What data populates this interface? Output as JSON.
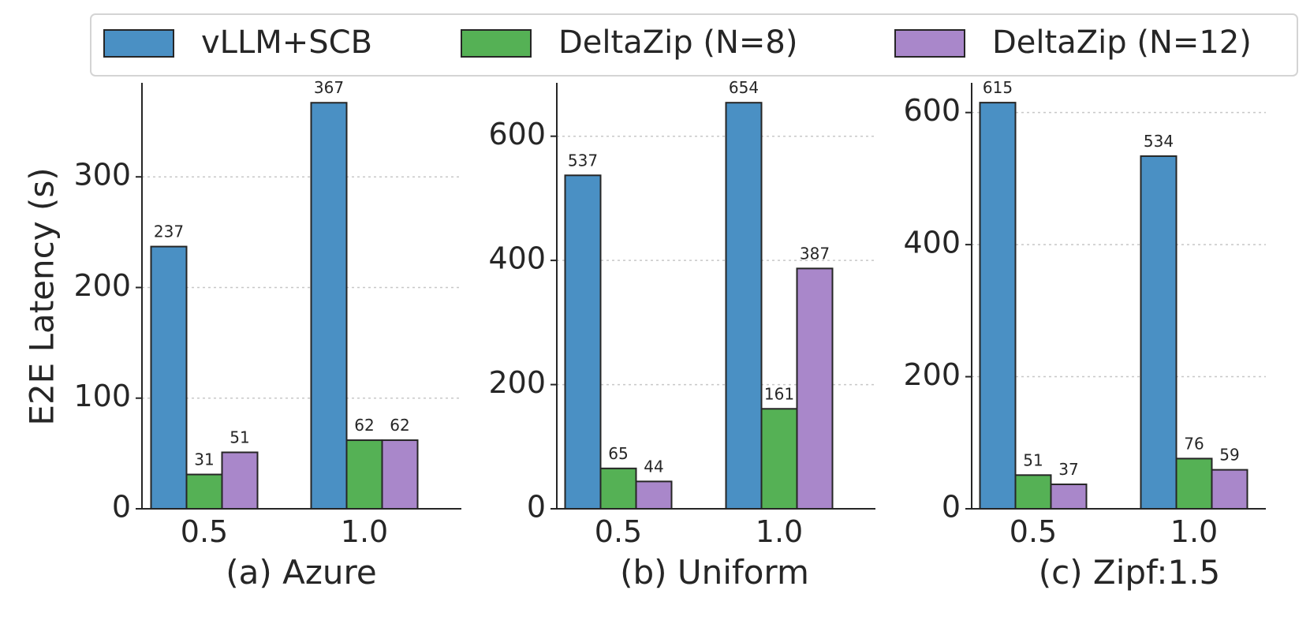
{
  "chart_data": {
    "type": "bar",
    "ylabel": "E2E Latency (s)",
    "legend": {
      "placement": "top",
      "entries": [
        {
          "name": "vLLM+SCB",
          "color": "#4A90C4"
        },
        {
          "name": "DeltaZip (N=8)",
          "color": "#55B155"
        },
        {
          "name": "DeltaZip (N=12)",
          "color": "#A987CA"
        }
      ]
    },
    "panels": [
      {
        "xlabel": "(a) Azure",
        "categories": [
          "0.5",
          "1.0"
        ],
        "ylim": [
          0,
          385
        ],
        "yticks": [
          0,
          100,
          200,
          300
        ],
        "ytick_labels": [
          "0",
          "100",
          "200",
          "300"
        ],
        "series": [
          {
            "name": "vLLM+SCB",
            "values": [
              237,
              367
            ],
            "labels": [
              "237",
              "367"
            ]
          },
          {
            "name": "DeltaZip (N=8)",
            "values": [
              31,
              62
            ],
            "labels": [
              "31",
              "62"
            ]
          },
          {
            "name": "DeltaZip (N=12)",
            "values": [
              51,
              62
            ],
            "labels": [
              "51",
              "62"
            ]
          }
        ]
      },
      {
        "xlabel": "(b) Uniform",
        "categories": [
          "0.5",
          "1.0"
        ],
        "ylim": [
          0,
          686
        ],
        "yticks": [
          0,
          200,
          400,
          600
        ],
        "ytick_labels": [
          "0",
          "200",
          "400",
          "600"
        ],
        "series": [
          {
            "name": "vLLM+SCB",
            "values": [
              537,
              654
            ],
            "labels": [
              "537",
              "654"
            ]
          },
          {
            "name": "DeltaZip (N=8)",
            "values": [
              65,
              161
            ],
            "labels": [
              "65",
              "161"
            ]
          },
          {
            "name": "DeltaZip (N=12)",
            "values": [
              44,
              387
            ],
            "labels": [
              "44",
              "387"
            ]
          }
        ]
      },
      {
        "xlabel": "(c) Zipf:1.5",
        "categories": [
          "0.5",
          "1.0"
        ],
        "ylim": [
          0,
          645
        ],
        "yticks": [
          0,
          200,
          400,
          600
        ],
        "ytick_labels": [
          "0",
          "200",
          "400",
          "600"
        ],
        "series": [
          {
            "name": "vLLM+SCB",
            "values": [
              615,
              534
            ],
            "labels": [
              "615",
              "534"
            ]
          },
          {
            "name": "DeltaZip (N=8)",
            "values": [
              51,
              76
            ],
            "labels": [
              "51",
              "76"
            ]
          },
          {
            "name": "DeltaZip (N=12)",
            "values": [
              37,
              59
            ],
            "labels": [
              "37",
              "59"
            ]
          }
        ]
      }
    ]
  }
}
